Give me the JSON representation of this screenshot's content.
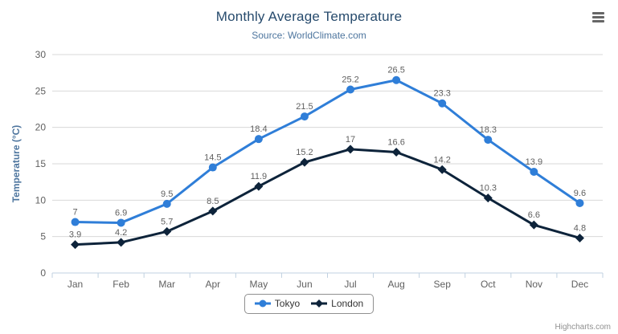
{
  "chart_data": {
    "type": "line",
    "title": "Monthly Average Temperature",
    "subtitle": "Source: WorldClimate.com",
    "categories": [
      "Jan",
      "Feb",
      "Mar",
      "Apr",
      "May",
      "Jun",
      "Jul",
      "Aug",
      "Sep",
      "Oct",
      "Nov",
      "Dec"
    ],
    "series": [
      {
        "name": "Tokyo",
        "color": "#2f7ed8",
        "marker": "circle",
        "values": [
          7,
          6.9,
          9.5,
          14.5,
          18.4,
          21.5,
          25.2,
          26.5,
          23.3,
          18.3,
          13.9,
          9.6
        ]
      },
      {
        "name": "London",
        "color": "#0d233a",
        "marker": "diamond",
        "values": [
          3.9,
          4.2,
          5.7,
          8.5,
          11.9,
          15.2,
          17,
          16.6,
          14.2,
          10.3,
          6.6,
          4.8
        ]
      }
    ],
    "xlabel": "",
    "ylabel": "Temperature (°C)",
    "ylim": [
      0,
      30
    ],
    "yticks": [
      0,
      5,
      10,
      15,
      20,
      25,
      30
    ],
    "grid": true,
    "legend_position": "bottom-center",
    "data_labels": true
  },
  "icons": {
    "menu": "hamburger-menu-icon"
  },
  "credits": {
    "label": "Highcharts.com"
  },
  "theme": {
    "background": "#ffffff",
    "title_color": "#274b6d",
    "subtitle_color": "#4d759e",
    "axis_label_color": "#606060",
    "axis_title_color": "#4d759e",
    "data_label_color": "#606060",
    "grid_color": "#d8d8d8",
    "axis_line_color": "#c0d0e0",
    "legend_border_color": "#909090",
    "legend_text_color": "#333333",
    "credits_color": "#909090",
    "menu_icon_color": "#666666"
  }
}
